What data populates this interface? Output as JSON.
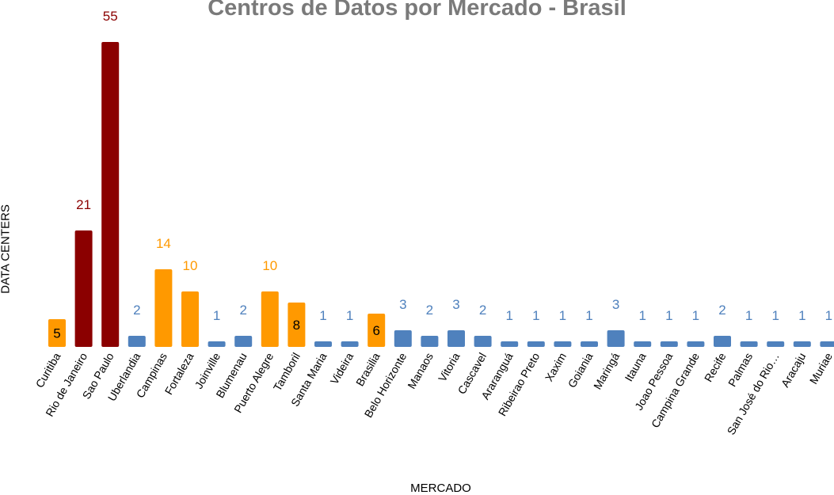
{
  "chart_data": {
    "type": "bar",
    "title": "Centros de Datos por Mercado - Brasil",
    "xlabel": "MERCADO",
    "ylabel": "DATA CENTERS",
    "ylim": [
      0,
      55
    ],
    "grid": false,
    "colors": {
      "dark_red": "#8b0000",
      "orange": "#ff9900",
      "blue": "#4f81bd",
      "label_blue": "#4f81bd",
      "label_orange": "#ff9900",
      "label_dark": "#000000"
    },
    "categories": [
      "Curitiba",
      "Rio de Janeiro",
      "Sao Paulo",
      "Uberlandia",
      "Campinas",
      "Fortaleza",
      "Joinville",
      "Blumenau",
      "Puerto Alegre",
      "Tamboril",
      "Santa Maria",
      "Videira",
      "Brasilia",
      "Belo Horizonte",
      "Manaos",
      "Vitoria",
      "Cascavel",
      "Araranguá",
      "Ribeirao Preto",
      "Xaxim",
      "Goiania",
      "Maringá",
      "Itauna",
      "Joao Pessoa",
      "Campina Grande",
      "Recife",
      "Palmas",
      "San José do Rio…",
      "Aracaju",
      "Muriae"
    ],
    "values": [
      5,
      21,
      55,
      2,
      14,
      10,
      1,
      2,
      10,
      8,
      1,
      1,
      6,
      3,
      2,
      3,
      2,
      1,
      1,
      1,
      1,
      3,
      1,
      1,
      1,
      2,
      1,
      1,
      1,
      1
    ],
    "bar_colors": [
      "orange",
      "dark_red",
      "dark_red",
      "blue",
      "orange",
      "orange",
      "blue",
      "blue",
      "orange",
      "orange",
      "blue",
      "blue",
      "orange",
      "blue",
      "blue",
      "blue",
      "blue",
      "blue",
      "blue",
      "blue",
      "blue",
      "blue",
      "blue",
      "blue",
      "blue",
      "blue",
      "blue",
      "blue",
      "blue",
      "blue"
    ],
    "label_colors": [
      "label_dark",
      "dark_red",
      "dark_red",
      "label_blue",
      "label_orange",
      "label_orange",
      "label_blue",
      "label_blue",
      "label_orange",
      "label_dark",
      "label_blue",
      "label_blue",
      "label_dark",
      "label_blue",
      "label_blue",
      "label_blue",
      "label_blue",
      "label_blue",
      "label_blue",
      "label_blue",
      "label_blue",
      "label_blue",
      "label_blue",
      "label_blue",
      "label_blue",
      "label_blue",
      "label_blue",
      "label_blue",
      "label_blue",
      "label_blue"
    ],
    "label_inside": [
      true,
      false,
      false,
      false,
      false,
      false,
      false,
      false,
      false,
      true,
      false,
      false,
      true,
      false,
      false,
      false,
      false,
      false,
      false,
      false,
      false,
      false,
      false,
      false,
      false,
      false,
      false,
      false,
      false,
      false
    ]
  }
}
